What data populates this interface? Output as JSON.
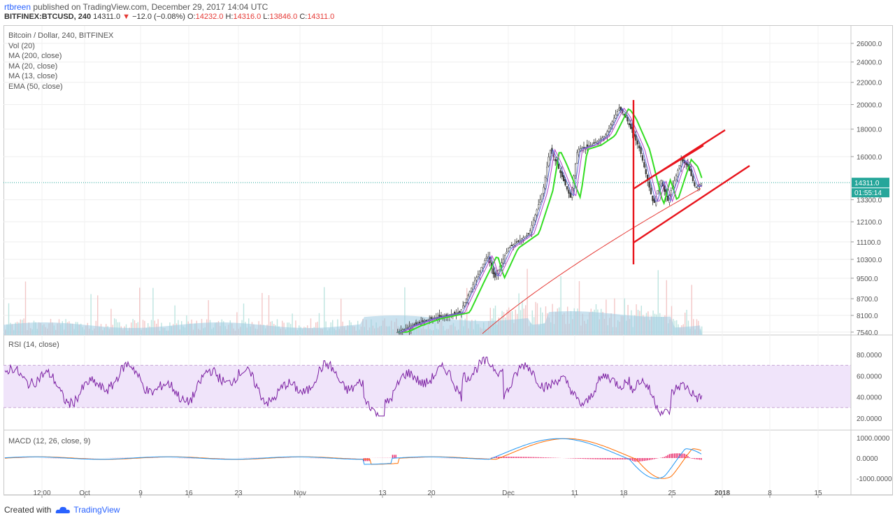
{
  "header": {
    "username": "rtbreen",
    "published_text": "published on TradingView.com, December 29, 2017 14:04 UTC",
    "symbol": "BITFINEX:BTCUSD, 240",
    "last": "14311.0",
    "change_arrow": "▼",
    "change": "−12.0 (−0.08%)",
    "o_label": "O:",
    "o": "14232.0",
    "h_label": "H:",
    "h": "14316.0",
    "l_label": "L:",
    "l": "13846.0",
    "c_label": "C:",
    "c": "14311.0"
  },
  "legend": {
    "title": "Bitcoin / Dollar, 240, BITFINEX",
    "vol": "Vol (20)",
    "ma200": "MA (200, close)",
    "ma20": "MA (20, close)",
    "ma13": "MA (13, close)",
    "ema50": "EMA (50, close)",
    "rsi": "RSI (14, close)",
    "macd": "MACD (12, 26, close, 9)"
  },
  "footer": {
    "created_with": "Created with",
    "brand": "TradingView"
  },
  "colors": {
    "up": "#26a69a",
    "candle_body": "#3d3d3d",
    "ma200": "#e53935",
    "ema50": "#33dd22",
    "ma20": "#b040c8",
    "ma13": "#5b6ad8",
    "rsi": "#7b1fa2",
    "rsi_band": "#f0e4fa",
    "macd": "#2196f3",
    "signal": "#ff6d00",
    "hist": "#e91e63",
    "drawing": "#e8141c",
    "volume_ma": "#9ecae1"
  },
  "chart_data": [
    {
      "type": "candlestick",
      "title": "Bitcoin / Dollar, 240, BITFINEX",
      "y_ticks": [
        26000,
        24000,
        22000,
        20000,
        18000,
        16000,
        14311,
        13300,
        12100,
        11100,
        10300,
        9500,
        8700,
        8100,
        7540
      ],
      "y_tick_labels": [
        "26000.0",
        "24000.0",
        "22000.0",
        "20000.0",
        "18000.0",
        "16000.0",
        "14311.0",
        "13300.0",
        "12100.0",
        "11100.0",
        "10300.0",
        "9500.0",
        "8700.0",
        "8100.0",
        "7540.0"
      ],
      "y_scale": "log",
      "x_labels": [
        "12:00",
        "Oct",
        "9",
        "16",
        "23",
        "Nov",
        "13",
        "20",
        "Dec",
        "11",
        "18",
        "25",
        "2018",
        "8",
        "15"
      ],
      "price_points": [
        {
          "date": "Nov 15",
          "close": 7540
        },
        {
          "date": "Nov 17",
          "close": 7750
        },
        {
          "date": "Nov 20",
          "close": 8000
        },
        {
          "date": "Nov 24",
          "close": 8200
        },
        {
          "date": "Nov 26",
          "close": 9300
        },
        {
          "date": "Nov 28",
          "close": 10500
        },
        {
          "date": "Nov 29",
          "close": 9500
        },
        {
          "date": "Dec 1",
          "close": 10800
        },
        {
          "date": "Dec 4",
          "close": 11500
        },
        {
          "date": "Dec 6",
          "close": 13800
        },
        {
          "date": "Dec 7",
          "close": 16500
        },
        {
          "date": "Dec 8",
          "close": 15500
        },
        {
          "date": "Dec 10",
          "close": 13400
        },
        {
          "date": "Dec 11",
          "close": 16500
        },
        {
          "date": "Dec 13",
          "close": 16800
        },
        {
          "date": "Dec 15",
          "close": 17500
        },
        {
          "date": "Dec 17",
          "close": 19700
        },
        {
          "date": "Dec 18",
          "close": 18900
        },
        {
          "date": "Dec 20",
          "close": 16500
        },
        {
          "date": "Dec 22",
          "close": 13000
        },
        {
          "date": "Dec 23",
          "close": 14500
        },
        {
          "date": "Dec 24",
          "close": 13200
        },
        {
          "date": "Dec 26",
          "close": 15800
        },
        {
          "date": "Dec 27",
          "close": 15300
        },
        {
          "date": "Dec 28",
          "close": 14000
        },
        {
          "date": "Dec 29",
          "close": 14311
        }
      ],
      "last_price_label": "14311.0",
      "countdown_label": "01:55:14"
    },
    {
      "type": "line",
      "title": "RSI (14, close)",
      "y_ticks": [
        80,
        60,
        40,
        20
      ],
      "y_tick_labels": [
        "80.0000",
        "60.0000",
        "40.0000",
        "20.0000"
      ],
      "bands": [
        70,
        30
      ]
    },
    {
      "type": "line",
      "title": "MACD (12, 26, close, 9)",
      "y_ticks": [
        1000,
        0,
        -1000
      ],
      "y_tick_labels": [
        "1000.0000",
        "0.0000",
        "-1000.0000"
      ]
    }
  ]
}
